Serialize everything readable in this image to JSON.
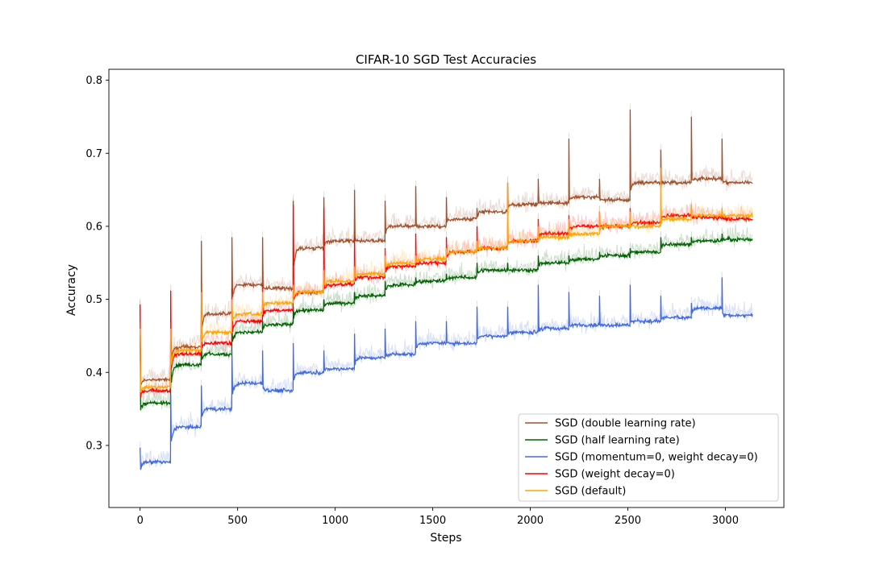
{
  "chart_data": {
    "type": "line",
    "title": "CIFAR-10 SGD Test Accuracies",
    "xlabel": "Steps",
    "ylabel": "Accuracy",
    "xlim": [
      -160,
      3300
    ],
    "ylim": [
      0.215,
      0.815
    ],
    "xticks": [
      0,
      500,
      1000,
      1500,
      2000,
      2500,
      3000
    ],
    "yticks": [
      0.3,
      0.4,
      0.5,
      0.6,
      0.7,
      0.8
    ],
    "grid": false,
    "legend_position": "lower-right",
    "epoch_steps": [
      0,
      157,
      314,
      471,
      628,
      785,
      942,
      1099,
      1256,
      1413,
      1570,
      1727,
      1884,
      2041,
      2198,
      2355,
      2512,
      2669,
      2826,
      2983,
      3140
    ],
    "series": [
      {
        "name": "SGD (double learning rate)",
        "color": "#a0522d",
        "values": [
          0.39,
          0.435,
          0.48,
          0.52,
          0.515,
          0.57,
          0.58,
          0.58,
          0.6,
          0.6,
          0.61,
          0.62,
          0.63,
          0.632,
          0.64,
          0.636,
          0.66,
          0.66,
          0.665,
          0.66
        ],
        "spikes": [
          0.49,
          0.455,
          0.58,
          0.585,
          0.585,
          0.635,
          0.64,
          0.65,
          0.635,
          0.655,
          0.64,
          0.625,
          0.66,
          0.665,
          0.72,
          0.665,
          0.76,
          0.705,
          0.75,
          0.72
        ]
      },
      {
        "name": "SGD (half learning rate)",
        "color": "#006400",
        "values": [
          0.358,
          0.41,
          0.425,
          0.455,
          0.465,
          0.485,
          0.495,
          0.505,
          0.52,
          0.525,
          0.53,
          0.54,
          0.54,
          0.55,
          0.555,
          0.56,
          0.565,
          0.575,
          0.58,
          0.582
        ],
        "spikes": [
          0.45,
          0.435,
          0.44,
          0.465,
          0.47,
          0.49,
          0.5,
          0.51,
          0.525,
          0.53,
          0.535,
          0.55,
          0.55,
          0.56,
          0.56,
          0.565,
          0.57,
          0.585,
          0.585,
          0.59
        ]
      },
      {
        "name": "SGD (momentum=0, weight decay=0)",
        "color": "#4169e1",
        "values": [
          0.277,
          0.325,
          0.35,
          0.385,
          0.375,
          0.4,
          0.405,
          0.42,
          0.425,
          0.44,
          0.44,
          0.45,
          0.455,
          0.46,
          0.465,
          0.465,
          0.47,
          0.475,
          0.488,
          0.478
        ],
        "spikes": [
          0.297,
          0.37,
          0.382,
          0.43,
          0.43,
          0.44,
          0.43,
          0.453,
          0.46,
          0.47,
          0.47,
          0.49,
          0.49,
          0.52,
          0.51,
          0.505,
          0.52,
          0.505,
          0.495,
          0.53
        ]
      },
      {
        "name": "SGD (weight decay=0)",
        "color": "#ff0000",
        "values": [
          0.375,
          0.425,
          0.44,
          0.47,
          0.485,
          0.51,
          0.52,
          0.53,
          0.545,
          0.55,
          0.565,
          0.57,
          0.58,
          0.59,
          0.6,
          0.6,
          0.605,
          0.615,
          0.612,
          0.61
        ],
        "spikes": [
          0.493,
          0.512,
          0.505,
          0.515,
          0.52,
          0.63,
          0.625,
          0.585,
          0.57,
          0.59,
          0.585,
          0.6,
          0.605,
          0.61,
          0.615,
          0.62,
          0.625,
          0.63,
          0.625,
          0.62
        ]
      },
      {
        "name": "SGD (default)",
        "color": "#ffa500",
        "values": [
          0.38,
          0.43,
          0.455,
          0.48,
          0.495,
          0.51,
          0.525,
          0.535,
          0.55,
          0.555,
          0.565,
          0.57,
          0.58,
          0.585,
          0.59,
          0.6,
          0.6,
          0.61,
          0.615,
          0.615
        ],
        "spikes": [
          0.46,
          0.46,
          0.51,
          0.5,
          0.51,
          0.52,
          0.54,
          0.545,
          0.56,
          0.56,
          0.57,
          0.58,
          0.66,
          0.6,
          0.61,
          0.62,
          0.62,
          0.68,
          0.63,
          0.625
        ]
      }
    ]
  }
}
